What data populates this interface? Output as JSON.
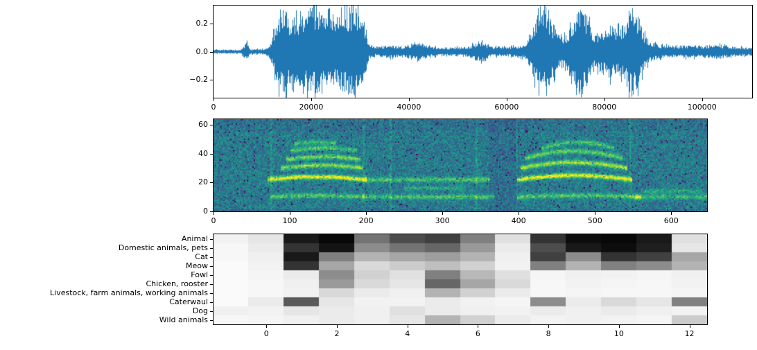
{
  "colors": {
    "waveform_line": "#1f77b4",
    "axis": "#000000",
    "background": "#ffffff"
  },
  "chart_data": [
    {
      "type": "line",
      "name": "audio-waveform",
      "title": "",
      "xlabel": "",
      "ylabel": "",
      "xlim": [
        0,
        110250
      ],
      "ylim": [
        -0.33,
        0.33
      ],
      "xticks": {
        "values": [
          0,
          20000,
          40000,
          60000,
          80000,
          100000
        ],
        "labels": [
          "0",
          "20000",
          "40000",
          "60000",
          "80000",
          "100000"
        ]
      },
      "yticks": {
        "values": [
          0.2,
          0.0,
          -0.2
        ],
        "labels": [
          "0.2",
          "0.0",
          "−0.2"
        ]
      },
      "line_color": "#1f77b4",
      "envelope": [
        [
          0,
          0.015
        ],
        [
          5500,
          0.015
        ],
        [
          6800,
          0.07
        ],
        [
          7400,
          0.02
        ],
        [
          10500,
          0.02
        ],
        [
          11500,
          0.05
        ],
        [
          12500,
          0.18
        ],
        [
          13500,
          0.3
        ],
        [
          14500,
          0.33
        ],
        [
          15500,
          0.22
        ],
        [
          16500,
          0.26
        ],
        [
          18000,
          0.25
        ],
        [
          19500,
          0.31
        ],
        [
          21000,
          0.33
        ],
        [
          22500,
          0.24
        ],
        [
          24000,
          0.28
        ],
        [
          25500,
          0.26
        ],
        [
          27000,
          0.3
        ],
        [
          28500,
          0.34
        ],
        [
          29800,
          0.3
        ],
        [
          30800,
          0.22
        ],
        [
          31600,
          0.06
        ],
        [
          33000,
          0.035
        ],
        [
          36000,
          0.05
        ],
        [
          38500,
          0.035
        ],
        [
          42000,
          0.08
        ],
        [
          44000,
          0.04
        ],
        [
          48000,
          0.03
        ],
        [
          52000,
          0.04
        ],
        [
          54500,
          0.08
        ],
        [
          56500,
          0.04
        ],
        [
          60000,
          0.035
        ],
        [
          63500,
          0.05
        ],
        [
          64800,
          0.12
        ],
        [
          66000,
          0.26
        ],
        [
          67500,
          0.3
        ],
        [
          69000,
          0.24
        ],
        [
          70500,
          0.13
        ],
        [
          72000,
          0.12
        ],
        [
          73500,
          0.22
        ],
        [
          75200,
          0.34
        ],
        [
          76500,
          0.25
        ],
        [
          78000,
          0.13
        ],
        [
          79500,
          0.16
        ],
        [
          81000,
          0.21
        ],
        [
          82500,
          0.17
        ],
        [
          84000,
          0.2
        ],
        [
          85500,
          0.34
        ],
        [
          86800,
          0.28
        ],
        [
          88000,
          0.14
        ],
        [
          89500,
          0.07
        ],
        [
          91500,
          0.05
        ],
        [
          94000,
          0.045
        ],
        [
          97000,
          0.05
        ],
        [
          100000,
          0.045
        ],
        [
          103000,
          0.055
        ],
        [
          106000,
          0.04
        ],
        [
          110250,
          0.03
        ]
      ]
    },
    {
      "type": "heatmap",
      "name": "spectrogram",
      "title": "",
      "colormap": "viridis",
      "xlim": [
        0,
        647
      ],
      "ylim": [
        0,
        64
      ],
      "xticks": {
        "values": [
          0,
          100,
          200,
          300,
          400,
          500,
          600
        ],
        "labels": [
          "0",
          "100",
          "200",
          "300",
          "400",
          "500",
          "600"
        ]
      },
      "yticks": {
        "values": [
          0,
          20,
          40,
          60
        ],
        "labels": [
          "0",
          "20",
          "40",
          "60"
        ]
      },
      "harmonic_lines": [
        {
          "x0": 70,
          "x1": 200,
          "f": 22,
          "i": 1.0,
          "a": 2
        },
        {
          "x0": 74,
          "x1": 198,
          "f": 10,
          "i": 0.55,
          "a": 1
        },
        {
          "x0": 88,
          "x1": 196,
          "f": 30,
          "i": 0.7,
          "a": 2
        },
        {
          "x0": 95,
          "x1": 192,
          "f": 36,
          "i": 0.62,
          "a": 2
        },
        {
          "x0": 100,
          "x1": 188,
          "f": 42,
          "i": 0.5,
          "a": 2
        },
        {
          "x0": 106,
          "x1": 160,
          "f": 47,
          "i": 0.42,
          "a": 1
        },
        {
          "x0": 198,
          "x1": 362,
          "f": 22,
          "i": 0.5,
          "a": 0
        },
        {
          "x0": 198,
          "x1": 368,
          "f": 10,
          "i": 0.48,
          "a": 0
        },
        {
          "x0": 250,
          "x1": 330,
          "f": 16,
          "i": 0.3,
          "a": 0
        },
        {
          "x0": 398,
          "x1": 548,
          "f": 22,
          "i": 1.0,
          "a": 3
        },
        {
          "x0": 402,
          "x1": 542,
          "f": 30,
          "i": 0.78,
          "a": 4
        },
        {
          "x0": 408,
          "x1": 536,
          "f": 37,
          "i": 0.6,
          "a": 5
        },
        {
          "x0": 398,
          "x1": 560,
          "f": 10,
          "i": 0.55,
          "a": 1
        },
        {
          "x0": 430,
          "x1": 525,
          "f": 44,
          "i": 0.48,
          "a": 4
        },
        {
          "x0": 552,
          "x1": 647,
          "f": 10,
          "i": 0.45,
          "a": 0
        },
        {
          "x0": 560,
          "x1": 640,
          "f": 14,
          "i": 0.3,
          "a": 0
        }
      ],
      "transients": [
        75,
        196,
        232,
        344,
        397,
        546
      ]
    },
    {
      "type": "heatmap",
      "name": "class-activation",
      "title": "",
      "colormap": "greys",
      "xlim": [
        -1.5,
        12.5
      ],
      "xticks": {
        "values": [
          0,
          2,
          4,
          6,
          8,
          10,
          12
        ],
        "labels": [
          "0",
          "2",
          "4",
          "6",
          "8",
          "10",
          "12"
        ]
      },
      "rows": [
        "Animal",
        "Domestic animals, pets",
        "Cat",
        "Meow",
        "Fowl",
        "Chicken, rooster",
        "Livestock, farm animals, working animals",
        "Caterwaul",
        "Dog",
        "Wild animals"
      ],
      "values": [
        [
          0.05,
          0.1,
          0.9,
          0.97,
          0.55,
          0.7,
          0.75,
          0.5,
          0.12,
          0.8,
          0.95,
          0.97,
          0.9,
          0.12
        ],
        [
          0.03,
          0.08,
          0.8,
          0.92,
          0.45,
          0.55,
          0.6,
          0.4,
          0.08,
          0.7,
          0.9,
          0.95,
          0.88,
          0.1
        ],
        [
          0.03,
          0.06,
          0.9,
          0.5,
          0.3,
          0.35,
          0.38,
          0.3,
          0.06,
          0.75,
          0.45,
          0.8,
          0.75,
          0.35
        ],
        [
          0.02,
          0.05,
          0.8,
          0.35,
          0.15,
          0.2,
          0.25,
          0.18,
          0.05,
          0.5,
          0.3,
          0.5,
          0.45,
          0.3
        ],
        [
          0.02,
          0.04,
          0.08,
          0.45,
          0.18,
          0.12,
          0.5,
          0.28,
          0.12,
          0.04,
          0.06,
          0.05,
          0.04,
          0.06
        ],
        [
          0.02,
          0.03,
          0.06,
          0.4,
          0.15,
          0.1,
          0.6,
          0.35,
          0.15,
          0.03,
          0.05,
          0.04,
          0.03,
          0.05
        ],
        [
          0.02,
          0.03,
          0.05,
          0.15,
          0.08,
          0.06,
          0.3,
          0.18,
          0.08,
          0.03,
          0.04,
          0.03,
          0.03,
          0.04
        ],
        [
          0.02,
          0.08,
          0.65,
          0.1,
          0.05,
          0.05,
          0.08,
          0.05,
          0.04,
          0.45,
          0.08,
          0.15,
          0.1,
          0.5
        ],
        [
          0.06,
          0.05,
          0.1,
          0.08,
          0.06,
          0.12,
          0.08,
          0.06,
          0.05,
          0.08,
          0.06,
          0.08,
          0.06,
          0.05
        ],
        [
          0.03,
          0.04,
          0.06,
          0.08,
          0.06,
          0.1,
          0.3,
          0.18,
          0.08,
          0.05,
          0.06,
          0.05,
          0.04,
          0.2
        ]
      ]
    }
  ]
}
